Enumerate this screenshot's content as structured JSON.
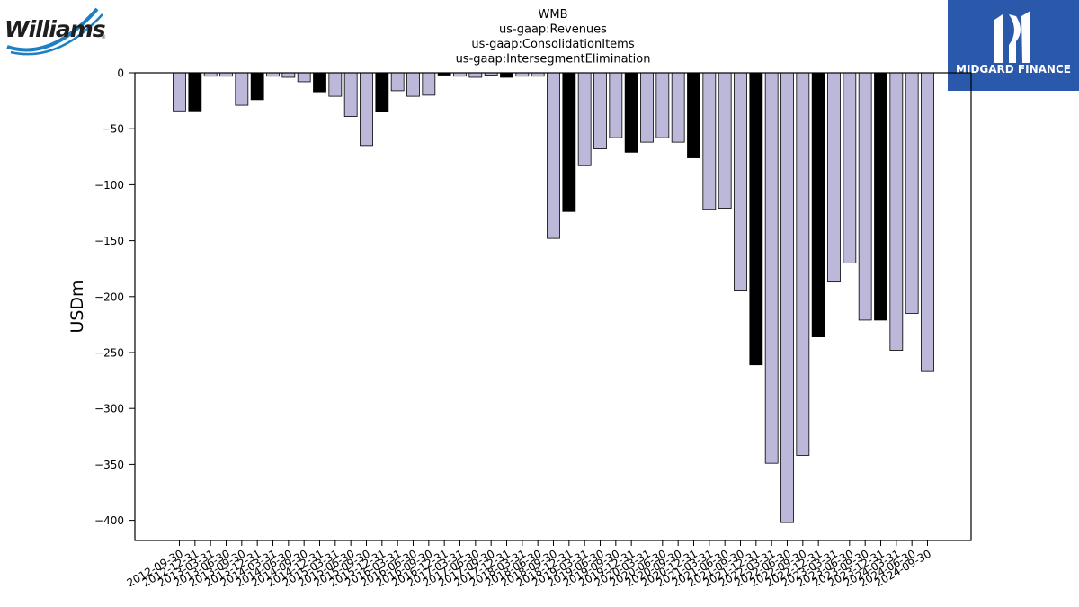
{
  "branding": {
    "left_logo_text": "Williams",
    "right_logo_text": "MIDGARD FINANCE"
  },
  "colors": {
    "bar_default": "#bcb8da",
    "bar_highlight": "#000000",
    "bar_edge": "#000000",
    "logo_blue": "#2a58ab"
  },
  "chart_data": {
    "type": "bar",
    "title_lines": [
      "WMB",
      "us-gaap:Revenues",
      "us-gaap:ConsolidationItems",
      "us-gaap:IntersegmentElimination"
    ],
    "xlabel": "",
    "ylabel": "USDm",
    "ylim": [
      -418,
      0
    ],
    "yticks": [
      0,
      -50,
      -100,
      -150,
      -200,
      -250,
      -300,
      -350,
      -400
    ],
    "grid": false,
    "categories": [
      "2012-09-30",
      "2012-12-31",
      "2013-03-31",
      "2013-06-30",
      "2013-09-30",
      "2013-12-31",
      "2014-03-31",
      "2014-06-30",
      "2014-09-30",
      "2014-12-31",
      "2015-03-31",
      "2015-06-30",
      "2015-09-30",
      "2015-12-31",
      "2016-03-31",
      "2016-06-30",
      "2016-09-30",
      "2016-12-31",
      "2017-03-31",
      "2017-06-30",
      "2017-09-30",
      "2017-12-31",
      "2018-03-31",
      "2018-06-30",
      "2018-09-30",
      "2018-12-31",
      "2019-03-31",
      "2019-06-30",
      "2019-09-30",
      "2019-12-31",
      "2020-03-31",
      "2020-06-30",
      "2020-09-30",
      "2020-12-31",
      "2021-03-31",
      "2021-06-30",
      "2021-09-30",
      "2021-12-31",
      "2022-03-31",
      "2022-06-30",
      "2022-09-30",
      "2022-12-31",
      "2023-03-31",
      "2023-06-30",
      "2023-09-30",
      "2023-12-31",
      "2024-03-31",
      "2024-06-30",
      "2024-09-30"
    ],
    "values": [
      -34,
      -34,
      -3,
      -3,
      -29,
      -24,
      -3,
      -4,
      -8,
      -17,
      -21,
      -39,
      -65,
      -35,
      -16,
      -21,
      -20,
      -2,
      -3,
      -4,
      -2,
      -4,
      -3,
      -3,
      -148,
      -124,
      -83,
      -68,
      -58,
      -71,
      -62,
      -58,
      -62,
      -76,
      -122,
      -121,
      -195,
      -261,
      -349,
      -402,
      -342,
      -236,
      -187,
      -170,
      -221,
      -221,
      -248,
      -215,
      -267
    ],
    "highlight_indices": [
      1,
      5,
      9,
      13,
      17,
      21,
      25,
      29,
      33,
      37,
      41,
      45
    ]
  }
}
